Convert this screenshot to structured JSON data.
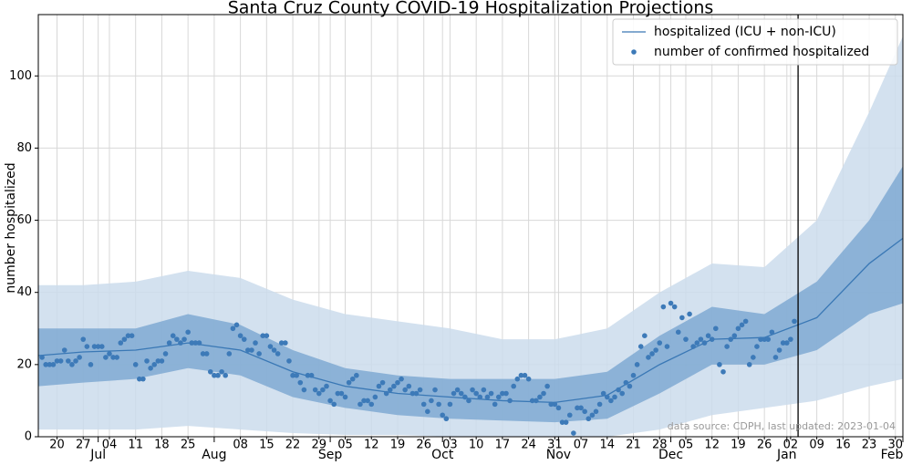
{
  "chart_data": {
    "type": "line",
    "title": "Santa Cruz County COVID-19 Hospitalization Projections",
    "y_label": "number hospitalized",
    "annotation": "data source: CDPH, last updated: 2023-01-04",
    "xlim": [
      "06-15",
      "02-01"
    ],
    "ylim": [
      0,
      117
    ],
    "yticks": [
      0,
      20,
      40,
      60,
      80,
      100
    ],
    "xticks": [
      {
        "value": "06-20",
        "label": "20"
      },
      {
        "value": "06-27",
        "label": "27"
      },
      {
        "value": "07-04",
        "label": "04"
      },
      {
        "value": "07-11",
        "label": "11"
      },
      {
        "value": "07-18",
        "label": "18"
      },
      {
        "value": "07-25",
        "label": "25"
      },
      {
        "value": "08-08",
        "label": "08"
      },
      {
        "value": "08-15",
        "label": "15"
      },
      {
        "value": "08-22",
        "label": "22"
      },
      {
        "value": "08-29",
        "label": "29"
      },
      {
        "value": "09-05",
        "label": "05"
      },
      {
        "value": "09-12",
        "label": "12"
      },
      {
        "value": "09-19",
        "label": "19"
      },
      {
        "value": "09-26",
        "label": "26"
      },
      {
        "value": "10-03",
        "label": "03"
      },
      {
        "value": "10-10",
        "label": "10"
      },
      {
        "value": "10-17",
        "label": "17"
      },
      {
        "value": "10-24",
        "label": "24"
      },
      {
        "value": "10-31",
        "label": "31"
      },
      {
        "value": "11-07",
        "label": "07"
      },
      {
        "value": "11-14",
        "label": "14"
      },
      {
        "value": "11-21",
        "label": "21"
      },
      {
        "value": "11-28",
        "label": "28"
      },
      {
        "value": "12-05",
        "label": "05"
      },
      {
        "value": "12-12",
        "label": "12"
      },
      {
        "value": "12-19",
        "label": "19"
      },
      {
        "value": "12-26",
        "label": "26"
      },
      {
        "value": "01-02",
        "label": "02"
      },
      {
        "value": "01-09",
        "label": "09"
      },
      {
        "value": "01-16",
        "label": "16"
      },
      {
        "value": "01-23",
        "label": "23"
      },
      {
        "value": "01-30",
        "label": "30"
      }
    ],
    "xticks_major": [
      {
        "value": "07-01",
        "label": "Jul"
      },
      {
        "value": "08-01",
        "label": "Aug"
      },
      {
        "value": "09-01",
        "label": "Sep"
      },
      {
        "value": "10-01",
        "label": "Oct"
      },
      {
        "value": "11-01",
        "label": "Nov"
      },
      {
        "value": "12-01",
        "label": "Dec"
      },
      {
        "value": "01-01",
        "label": "Jan"
      },
      {
        "value": "02-01",
        "label": "Feb"
      }
    ],
    "grid": true,
    "legend": "upper right",
    "today": "01-04",
    "series": [
      {
        "name": "hospitalized (ICU + non-ICU)",
        "type": "line",
        "color": "#3a78b5",
        "inner_color": "#7fa9d2",
        "outer_color": "#cbdcec",
        "x": [
          "06-15",
          "06-27",
          "07-11",
          "07-25",
          "08-08",
          "08-22",
          "09-05",
          "09-19",
          "10-03",
          "10-17",
          "10-31",
          "11-14",
          "11-28",
          "12-12",
          "12-26",
          "01-09",
          "01-23",
          "02-01"
        ],
        "values": [
          22.5,
          23.5,
          24,
          26,
          24,
          18,
          14,
          12,
          11,
          10,
          9.5,
          11.5,
          20,
          27,
          27.5,
          33,
          48,
          55
        ],
        "inner_upper": [
          30,
          30,
          30,
          34,
          31,
          24,
          19,
          17,
          16,
          16,
          16,
          18,
          28,
          36,
          34,
          43,
          60,
          75
        ],
        "inner_lower": [
          14,
          15,
          16,
          19,
          17,
          11,
          8,
          6,
          5,
          4.5,
          4,
          5,
          12,
          20,
          20,
          24,
          34,
          37
        ],
        "outer_upper": [
          42,
          42,
          43,
          46,
          44,
          38,
          34,
          32,
          30,
          27,
          27,
          30,
          40,
          48,
          47,
          60,
          90,
          111
        ],
        "outer_lower": [
          2,
          2,
          2,
          3,
          2,
          1,
          0.5,
          0.5,
          0,
          0,
          0,
          0,
          2,
          6,
          8,
          10,
          14,
          16
        ]
      },
      {
        "name": "number of confirmed hospitalized",
        "type": "scatter",
        "color": "#3d7ab8",
        "x": [
          "06-16",
          "06-17",
          "06-18",
          "06-19",
          "06-20",
          "06-21",
          "06-22",
          "06-23",
          "06-24",
          "06-25",
          "06-26",
          "06-27",
          "06-28",
          "06-29",
          "06-30",
          "07-01",
          "07-02",
          "07-03",
          "07-04",
          "07-05",
          "07-06",
          "07-07",
          "07-08",
          "07-09",
          "07-10",
          "07-11",
          "07-12",
          "07-13",
          "07-14",
          "07-15",
          "07-16",
          "07-17",
          "07-18",
          "07-19",
          "07-20",
          "07-21",
          "07-22",
          "07-23",
          "07-24",
          "07-25",
          "07-26",
          "07-27",
          "07-28",
          "07-29",
          "07-30",
          "07-31",
          "08-01",
          "08-02",
          "08-03",
          "08-04",
          "08-05",
          "08-06",
          "08-07",
          "08-08",
          "08-09",
          "08-10",
          "08-11",
          "08-12",
          "08-13",
          "08-14",
          "08-15",
          "08-16",
          "08-17",
          "08-18",
          "08-19",
          "08-20",
          "08-21",
          "08-22",
          "08-23",
          "08-24",
          "08-25",
          "08-26",
          "08-27",
          "08-28",
          "08-29",
          "08-30",
          "08-31",
          "09-01",
          "09-02",
          "09-03",
          "09-04",
          "09-05",
          "09-06",
          "09-07",
          "09-08",
          "09-09",
          "09-10",
          "09-11",
          "09-12",
          "09-13",
          "09-14",
          "09-15",
          "09-16",
          "09-17",
          "09-18",
          "09-19",
          "09-20",
          "09-21",
          "09-22",
          "09-23",
          "09-24",
          "09-25",
          "09-26",
          "09-27",
          "09-28",
          "09-29",
          "09-30",
          "10-01",
          "10-02",
          "10-03",
          "10-04",
          "10-05",
          "10-06",
          "10-07",
          "10-08",
          "10-09",
          "10-10",
          "10-11",
          "10-12",
          "10-13",
          "10-14",
          "10-15",
          "10-16",
          "10-17",
          "10-18",
          "10-19",
          "10-20",
          "10-21",
          "10-22",
          "10-23",
          "10-24",
          "10-25",
          "10-26",
          "10-27",
          "10-28",
          "10-29",
          "10-30",
          "10-31",
          "11-01",
          "11-02",
          "11-03",
          "11-04",
          "11-05",
          "11-06",
          "11-07",
          "11-08",
          "11-09",
          "11-10",
          "11-11",
          "11-12",
          "11-13",
          "11-14",
          "11-15",
          "11-16",
          "11-17",
          "11-18",
          "11-19",
          "11-20",
          "11-21",
          "11-22",
          "11-23",
          "11-24",
          "11-25",
          "11-26",
          "11-27",
          "11-28",
          "11-29",
          "11-30",
          "12-01",
          "12-02",
          "12-03",
          "12-04",
          "12-05",
          "12-06",
          "12-07",
          "12-08",
          "12-09",
          "12-10",
          "12-11",
          "12-12",
          "12-13",
          "12-14",
          "12-15",
          "12-16",
          "12-17",
          "12-18",
          "12-19",
          "12-20",
          "12-21",
          "12-22",
          "12-23",
          "12-24",
          "12-25",
          "12-26",
          "12-27",
          "12-28",
          "12-29",
          "12-30",
          "12-31",
          "01-01",
          "01-02",
          "01-03"
        ],
        "values": [
          22,
          20,
          20,
          20,
          21,
          21,
          24,
          21,
          20,
          21,
          22,
          27,
          25,
          20,
          25,
          25,
          25,
          22,
          23,
          22,
          22,
          26,
          27,
          28,
          28,
          20,
          16,
          16,
          21,
          19,
          20,
          21,
          21,
          23,
          26,
          28,
          27,
          26,
          27,
          29,
          26,
          26,
          26,
          23,
          23,
          18,
          17,
          17,
          18,
          17,
          23,
          30,
          31,
          28,
          27,
          24,
          24,
          26,
          23,
          28,
          28,
          25,
          24,
          23,
          26,
          26,
          21,
          17,
          17,
          15,
          13,
          17,
          17,
          13,
          12,
          13,
          14,
          10,
          9,
          12,
          12,
          11,
          15,
          16,
          17,
          9,
          10,
          10,
          9,
          11,
          14,
          15,
          12,
          13,
          14,
          15,
          16,
          13,
          14,
          12,
          12,
          13,
          9,
          7,
          10,
          13,
          9,
          6,
          5,
          9,
          12,
          13,
          12,
          11,
          10,
          13,
          12,
          11,
          13,
          11,
          12,
          9,
          11,
          12,
          12,
          10,
          14,
          16,
          17,
          17,
          16,
          10,
          10,
          11,
          12,
          14,
          9,
          9,
          8,
          4,
          4,
          6,
          1,
          8,
          8,
          7,
          5,
          6,
          7,
          9,
          12,
          11,
          10,
          11,
          13,
          12,
          15,
          14,
          17,
          20,
          25,
          28,
          22,
          23,
          24,
          26,
          36,
          25,
          37,
          36,
          29,
          33,
          27,
          34,
          25,
          26,
          27,
          26,
          28,
          27,
          30,
          20,
          18,
          25,
          27,
          28,
          30,
          31,
          32,
          20,
          22,
          25,
          27,
          27,
          27,
          29,
          22,
          24,
          26,
          26,
          27,
          32
        ]
      }
    ]
  }
}
